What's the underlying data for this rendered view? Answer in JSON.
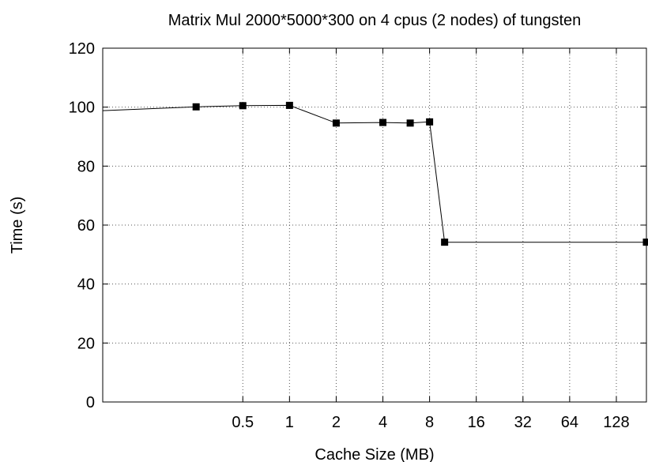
{
  "chart_data": {
    "type": "line",
    "title": "Matrix Mul 2000*5000*300 on 4 cpus (2 nodes) of tungsten",
    "xlabel": "Cache Size (MB)",
    "ylabel": "Time (s)",
    "x_scale": "log2",
    "xlim": [
      0.0625,
      200
    ],
    "ylim": [
      0,
      120
    ],
    "x_ticks": [
      {
        "value": 0.5,
        "label": "0.5"
      },
      {
        "value": 1,
        "label": "1"
      },
      {
        "value": 2,
        "label": "2"
      },
      {
        "value": 4,
        "label": "4"
      },
      {
        "value": 8,
        "label": "8"
      },
      {
        "value": 16,
        "label": "16"
      },
      {
        "value": 32,
        "label": "32"
      },
      {
        "value": 64,
        "label": "64"
      },
      {
        "value": 128,
        "label": "128"
      }
    ],
    "y_ticks": [
      {
        "value": 0,
        "label": "0"
      },
      {
        "value": 20,
        "label": "20"
      },
      {
        "value": 40,
        "label": "40"
      },
      {
        "value": 60,
        "label": "60"
      },
      {
        "value": 80,
        "label": "80"
      },
      {
        "value": 100,
        "label": "100"
      },
      {
        "value": 120,
        "label": "120"
      }
    ],
    "grid": true,
    "series": [
      {
        "x": [
          0.0625,
          0.25,
          0.5,
          1,
          2,
          4,
          6,
          8,
          10,
          200
        ],
        "y": [
          98.8,
          100.1,
          100.5,
          100.6,
          94.6,
          94.8,
          94.6,
          95.0,
          54.2,
          54.2
        ],
        "markers": [
          false,
          true,
          true,
          true,
          true,
          true,
          true,
          true,
          true,
          true
        ]
      }
    ]
  }
}
